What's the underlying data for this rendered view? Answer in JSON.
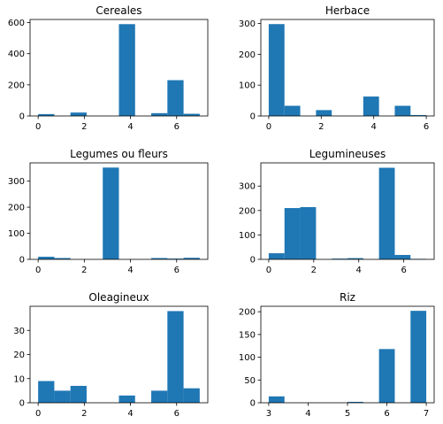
{
  "figure": {
    "background": "#ffffff",
    "bar_color": "#1f77b4"
  },
  "chart_data": [
    {
      "type": "bar",
      "title": "Cereales",
      "bins": [
        [
          0,
          0.7
        ],
        [
          0.7,
          1.4
        ],
        [
          1.4,
          2.1
        ],
        [
          2.1,
          2.8
        ],
        [
          2.8,
          3.5
        ],
        [
          3.5,
          4.2
        ],
        [
          4.2,
          4.9
        ],
        [
          4.9,
          5.6
        ],
        [
          5.6,
          6.3
        ],
        [
          6.3,
          7.0
        ]
      ],
      "values": [
        12,
        0,
        22,
        0,
        0,
        590,
        0,
        18,
        230,
        14
      ],
      "xlim": [
        -0.35,
        7.35
      ],
      "ylim": [
        0,
        620
      ],
      "xticks": [
        {
          "v": 0,
          "label": "0"
        },
        {
          "v": 2,
          "label": "2"
        },
        {
          "v": 4,
          "label": "4"
        },
        {
          "v": 6,
          "label": "6"
        }
      ],
      "yticks": [
        {
          "v": 0,
          "label": "0"
        },
        {
          "v": 200,
          "label": "200"
        },
        {
          "v": 400,
          "label": "400"
        },
        {
          "v": 600,
          "label": "600"
        }
      ]
    },
    {
      "type": "bar",
      "title": "Herbace",
      "bins": [
        [
          0,
          0.6
        ],
        [
          0.6,
          1.2
        ],
        [
          1.2,
          1.8
        ],
        [
          1.8,
          2.4
        ],
        [
          2.4,
          3.0
        ],
        [
          3.0,
          3.6
        ],
        [
          3.6,
          4.2
        ],
        [
          4.2,
          4.8
        ],
        [
          4.8,
          5.4
        ],
        [
          5.4,
          6.0
        ]
      ],
      "values": [
        298,
        33,
        0,
        19,
        0,
        0,
        63,
        0,
        33,
        3
      ],
      "xlim": [
        -0.3,
        6.3
      ],
      "ylim": [
        0,
        313
      ],
      "xticks": [
        {
          "v": 0,
          "label": "0"
        },
        {
          "v": 2,
          "label": "2"
        },
        {
          "v": 4,
          "label": "4"
        },
        {
          "v": 6,
          "label": "6"
        }
      ],
      "yticks": [
        {
          "v": 0,
          "label": "0"
        },
        {
          "v": 100,
          "label": "100"
        },
        {
          "v": 200,
          "label": "200"
        },
        {
          "v": 300,
          "label": "300"
        }
      ]
    },
    {
      "type": "bar",
      "title": "Legumes ou fleurs",
      "bins": [
        [
          0,
          0.7
        ],
        [
          0.7,
          1.4
        ],
        [
          1.4,
          2.1
        ],
        [
          2.1,
          2.8
        ],
        [
          2.8,
          3.5
        ],
        [
          3.5,
          4.2
        ],
        [
          4.2,
          4.9
        ],
        [
          4.9,
          5.6
        ],
        [
          5.6,
          6.3
        ],
        [
          6.3,
          7.0
        ]
      ],
      "values": [
        10,
        5,
        0,
        0,
        352,
        0,
        0,
        5,
        3,
        6
      ],
      "xlim": [
        -0.35,
        7.35
      ],
      "ylim": [
        0,
        370
      ],
      "xticks": [
        {
          "v": 0,
          "label": "0"
        },
        {
          "v": 2,
          "label": "2"
        },
        {
          "v": 4,
          "label": "4"
        },
        {
          "v": 6,
          "label": "6"
        }
      ],
      "yticks": [
        {
          "v": 0,
          "label": "0"
        },
        {
          "v": 100,
          "label": "100"
        },
        {
          "v": 200,
          "label": "200"
        },
        {
          "v": 300,
          "label": "300"
        }
      ]
    },
    {
      "type": "bar",
      "title": "Legumineuses",
      "bins": [
        [
          0,
          0.7
        ],
        [
          0.7,
          1.4
        ],
        [
          1.4,
          2.1
        ],
        [
          2.1,
          2.8
        ],
        [
          2.8,
          3.5
        ],
        [
          3.5,
          4.2
        ],
        [
          4.2,
          4.9
        ],
        [
          4.9,
          5.6
        ],
        [
          5.6,
          6.3
        ],
        [
          6.3,
          7.0
        ]
      ],
      "values": [
        25,
        210,
        214,
        0,
        3,
        5,
        0,
        375,
        18,
        2
      ],
      "xlim": [
        -0.35,
        7.35
      ],
      "ylim": [
        0,
        395
      ],
      "xticks": [
        {
          "v": 0,
          "label": "0"
        },
        {
          "v": 2,
          "label": "2"
        },
        {
          "v": 4,
          "label": "4"
        },
        {
          "v": 6,
          "label": "6"
        }
      ],
      "yticks": [
        {
          "v": 0,
          "label": "0"
        },
        {
          "v": 100,
          "label": "100"
        },
        {
          "v": 200,
          "label": "200"
        },
        {
          "v": 300,
          "label": "300"
        }
      ]
    },
    {
      "type": "bar",
      "title": "Oleagineux",
      "bins": [
        [
          0,
          0.7
        ],
        [
          0.7,
          1.4
        ],
        [
          1.4,
          2.1
        ],
        [
          2.1,
          2.8
        ],
        [
          2.8,
          3.5
        ],
        [
          3.5,
          4.2
        ],
        [
          4.2,
          4.9
        ],
        [
          4.9,
          5.6
        ],
        [
          5.6,
          6.3
        ],
        [
          6.3,
          7.0
        ]
      ],
      "values": [
        9,
        5,
        7,
        0,
        0,
        3,
        0,
        5,
        38,
        6
      ],
      "xlim": [
        -0.35,
        7.35
      ],
      "ylim": [
        0,
        40
      ],
      "xticks": [
        {
          "v": 0,
          "label": "0"
        },
        {
          "v": 2,
          "label": "2"
        },
        {
          "v": 4,
          "label": "4"
        },
        {
          "v": 6,
          "label": "6"
        }
      ],
      "yticks": [
        {
          "v": 0,
          "label": "0"
        },
        {
          "v": 10,
          "label": "10"
        },
        {
          "v": 20,
          "label": "20"
        },
        {
          "v": 30,
          "label": "30"
        }
      ]
    },
    {
      "type": "bar",
      "title": "Riz",
      "bins": [
        [
          3.0,
          3.4
        ],
        [
          3.4,
          3.8
        ],
        [
          3.8,
          4.2
        ],
        [
          4.2,
          4.6
        ],
        [
          4.6,
          5.0
        ],
        [
          5.0,
          5.4
        ],
        [
          5.4,
          5.8
        ],
        [
          5.8,
          6.2
        ],
        [
          6.2,
          6.6
        ],
        [
          6.6,
          7.0
        ]
      ],
      "values": [
        14,
        0,
        0,
        0,
        0,
        2,
        0,
        118,
        0,
        202
      ],
      "xlim": [
        2.8,
        7.2
      ],
      "ylim": [
        0,
        212
      ],
      "xticks": [
        {
          "v": 3,
          "label": "3"
        },
        {
          "v": 4,
          "label": "4"
        },
        {
          "v": 5,
          "label": "5"
        },
        {
          "v": 6,
          "label": "6"
        },
        {
          "v": 7,
          "label": "7"
        }
      ],
      "yticks": [
        {
          "v": 0,
          "label": "0"
        },
        {
          "v": 50,
          "label": "50"
        },
        {
          "v": 100,
          "label": "100"
        },
        {
          "v": 150,
          "label": "150"
        },
        {
          "v": 200,
          "label": "200"
        }
      ]
    }
  ]
}
